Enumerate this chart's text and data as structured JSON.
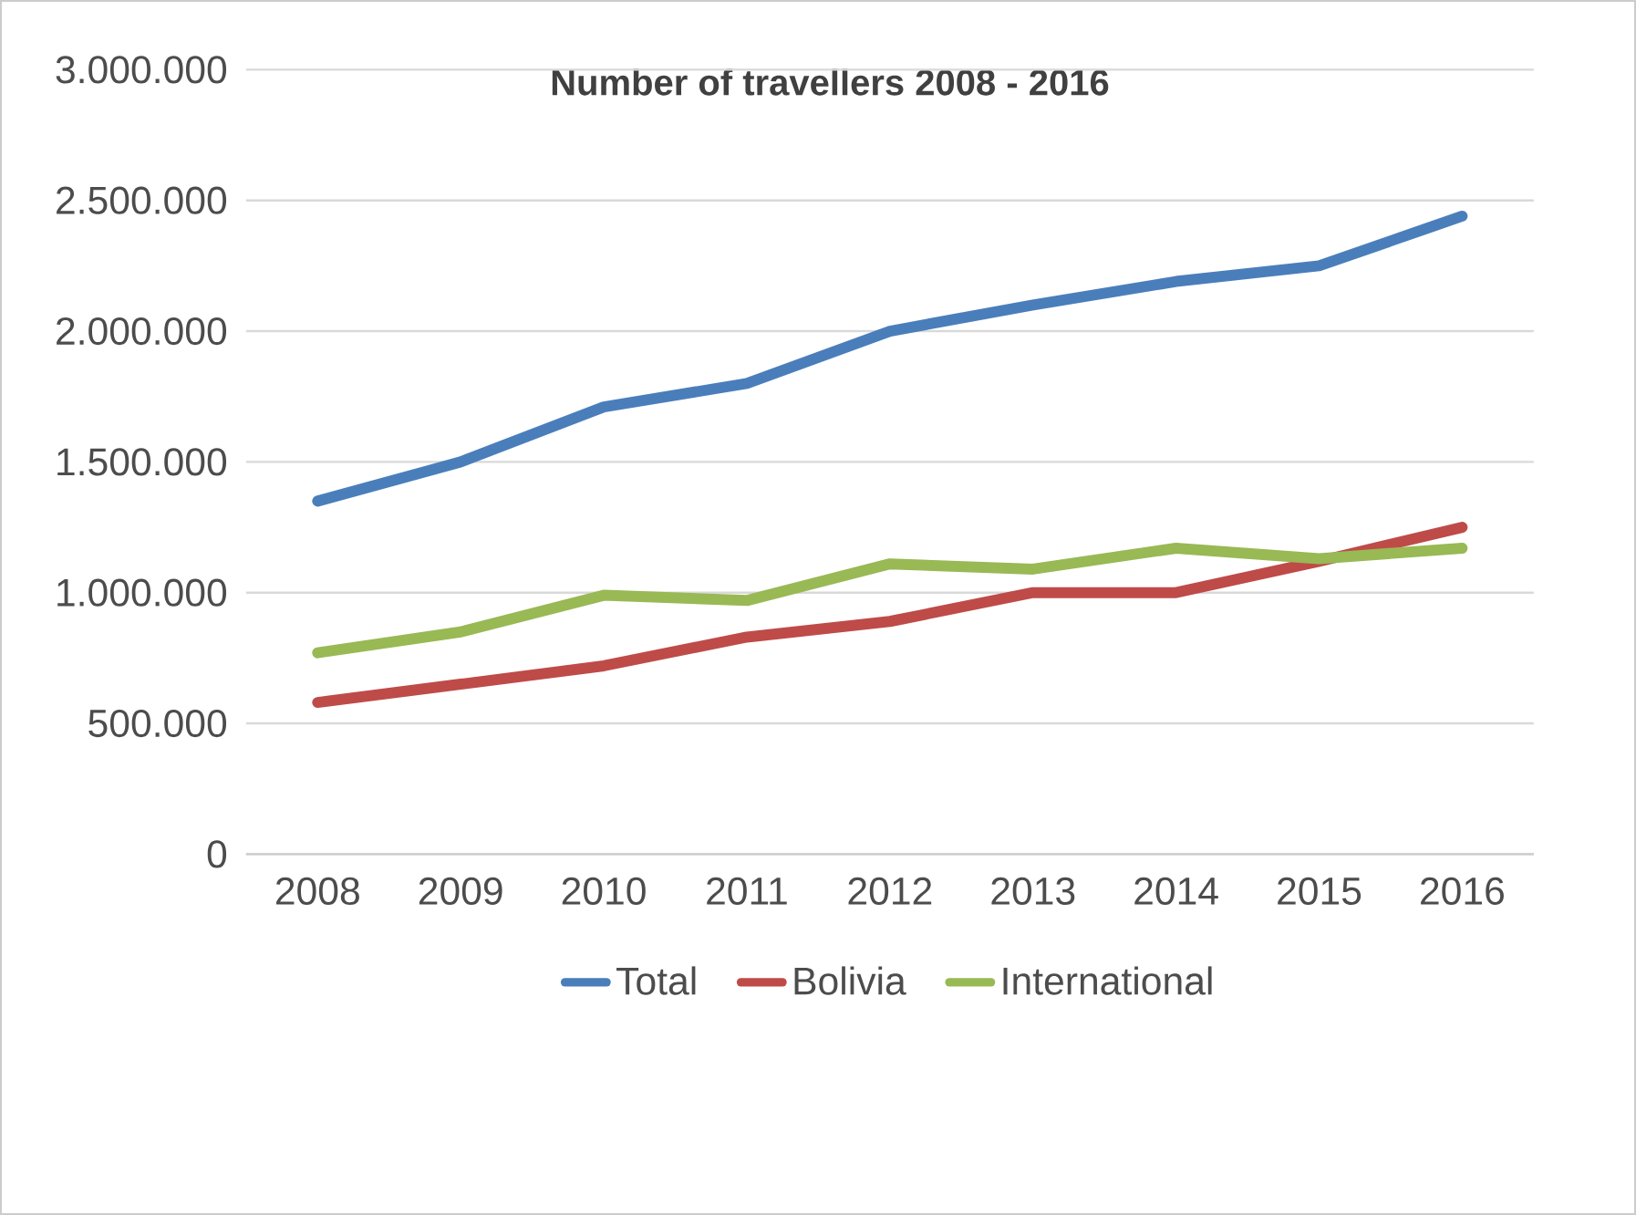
{
  "chart_data": {
    "type": "line",
    "title": "Number of travellers 2008 - 2016",
    "categories": [
      "2008",
      "2009",
      "2010",
      "2011",
      "2012",
      "2013",
      "2014",
      "2015",
      "2016"
    ],
    "series": [
      {
        "name": "Total",
        "color": "#4a7ebb",
        "values": [
          1350000,
          1500000,
          1710000,
          1800000,
          2000000,
          2100000,
          2190000,
          2250000,
          2440000
        ]
      },
      {
        "name": "Bolivia",
        "color": "#be4b48",
        "values": [
          580000,
          650000,
          720000,
          830000,
          890000,
          1000000,
          1000000,
          1120000,
          1250000
        ]
      },
      {
        "name": "International",
        "color": "#98b954",
        "values": [
          770000,
          850000,
          990000,
          970000,
          1110000,
          1090000,
          1170000,
          1130000,
          1170000
        ]
      }
    ],
    "ylim": [
      0,
      3000000
    ],
    "yticks": [
      {
        "value": 0,
        "label": "0"
      },
      {
        "value": 500000,
        "label": "500.000"
      },
      {
        "value": 1000000,
        "label": "1.000.000"
      },
      {
        "value": 1500000,
        "label": "1.500.000"
      },
      {
        "value": 2000000,
        "label": "2.000.000"
      },
      {
        "value": 2500000,
        "label": "2.500.000"
      },
      {
        "value": 3000000,
        "label": "3.000.000"
      }
    ],
    "grid": "y",
    "legend": "bottom",
    "marker": "none",
    "line_style": "solid"
  }
}
